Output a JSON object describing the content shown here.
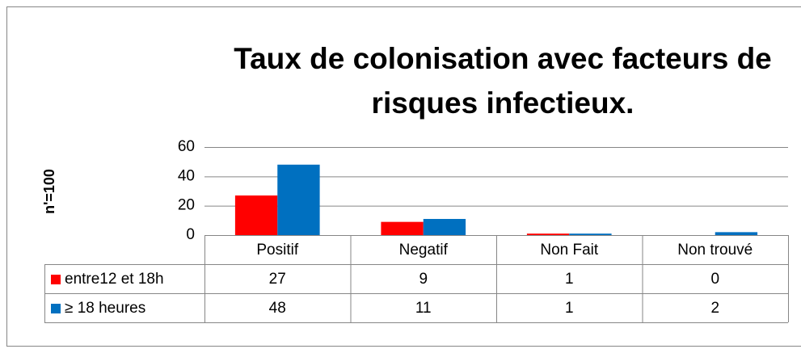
{
  "chart_data": {
    "type": "bar",
    "title": [
      "Taux de colonisation avec facteurs de",
      "risques infectieux."
    ],
    "ylabel": "n'=100",
    "categories": [
      "Positif",
      "Negatif",
      "Non Fait",
      "Non trouvé"
    ],
    "series": [
      {
        "name": "entre12 et 18h",
        "color": "#ff0000",
        "values": [
          27,
          9,
          1,
          0
        ]
      },
      {
        "name": "≥ 18 heures",
        "color": "#0070c0",
        "values": [
          48,
          11,
          1,
          2
        ]
      }
    ],
    "ylim": [
      0,
      60
    ],
    "yticks": [
      0,
      20,
      40,
      60
    ],
    "grid": true,
    "data_table": true
  }
}
